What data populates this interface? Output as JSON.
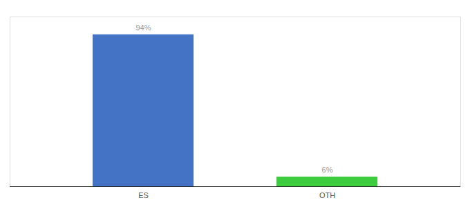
{
  "chart_data": {
    "type": "bar",
    "categories": [
      "ES",
      "OTH"
    ],
    "values": [
      94,
      6
    ],
    "value_labels": [
      "94%",
      "6%"
    ],
    "colors": [
      "#4472c4",
      "#3dcc3d"
    ],
    "ylim": [
      0,
      105
    ],
    "data_labels": true,
    "tick_labels": "x",
    "grid": false
  }
}
